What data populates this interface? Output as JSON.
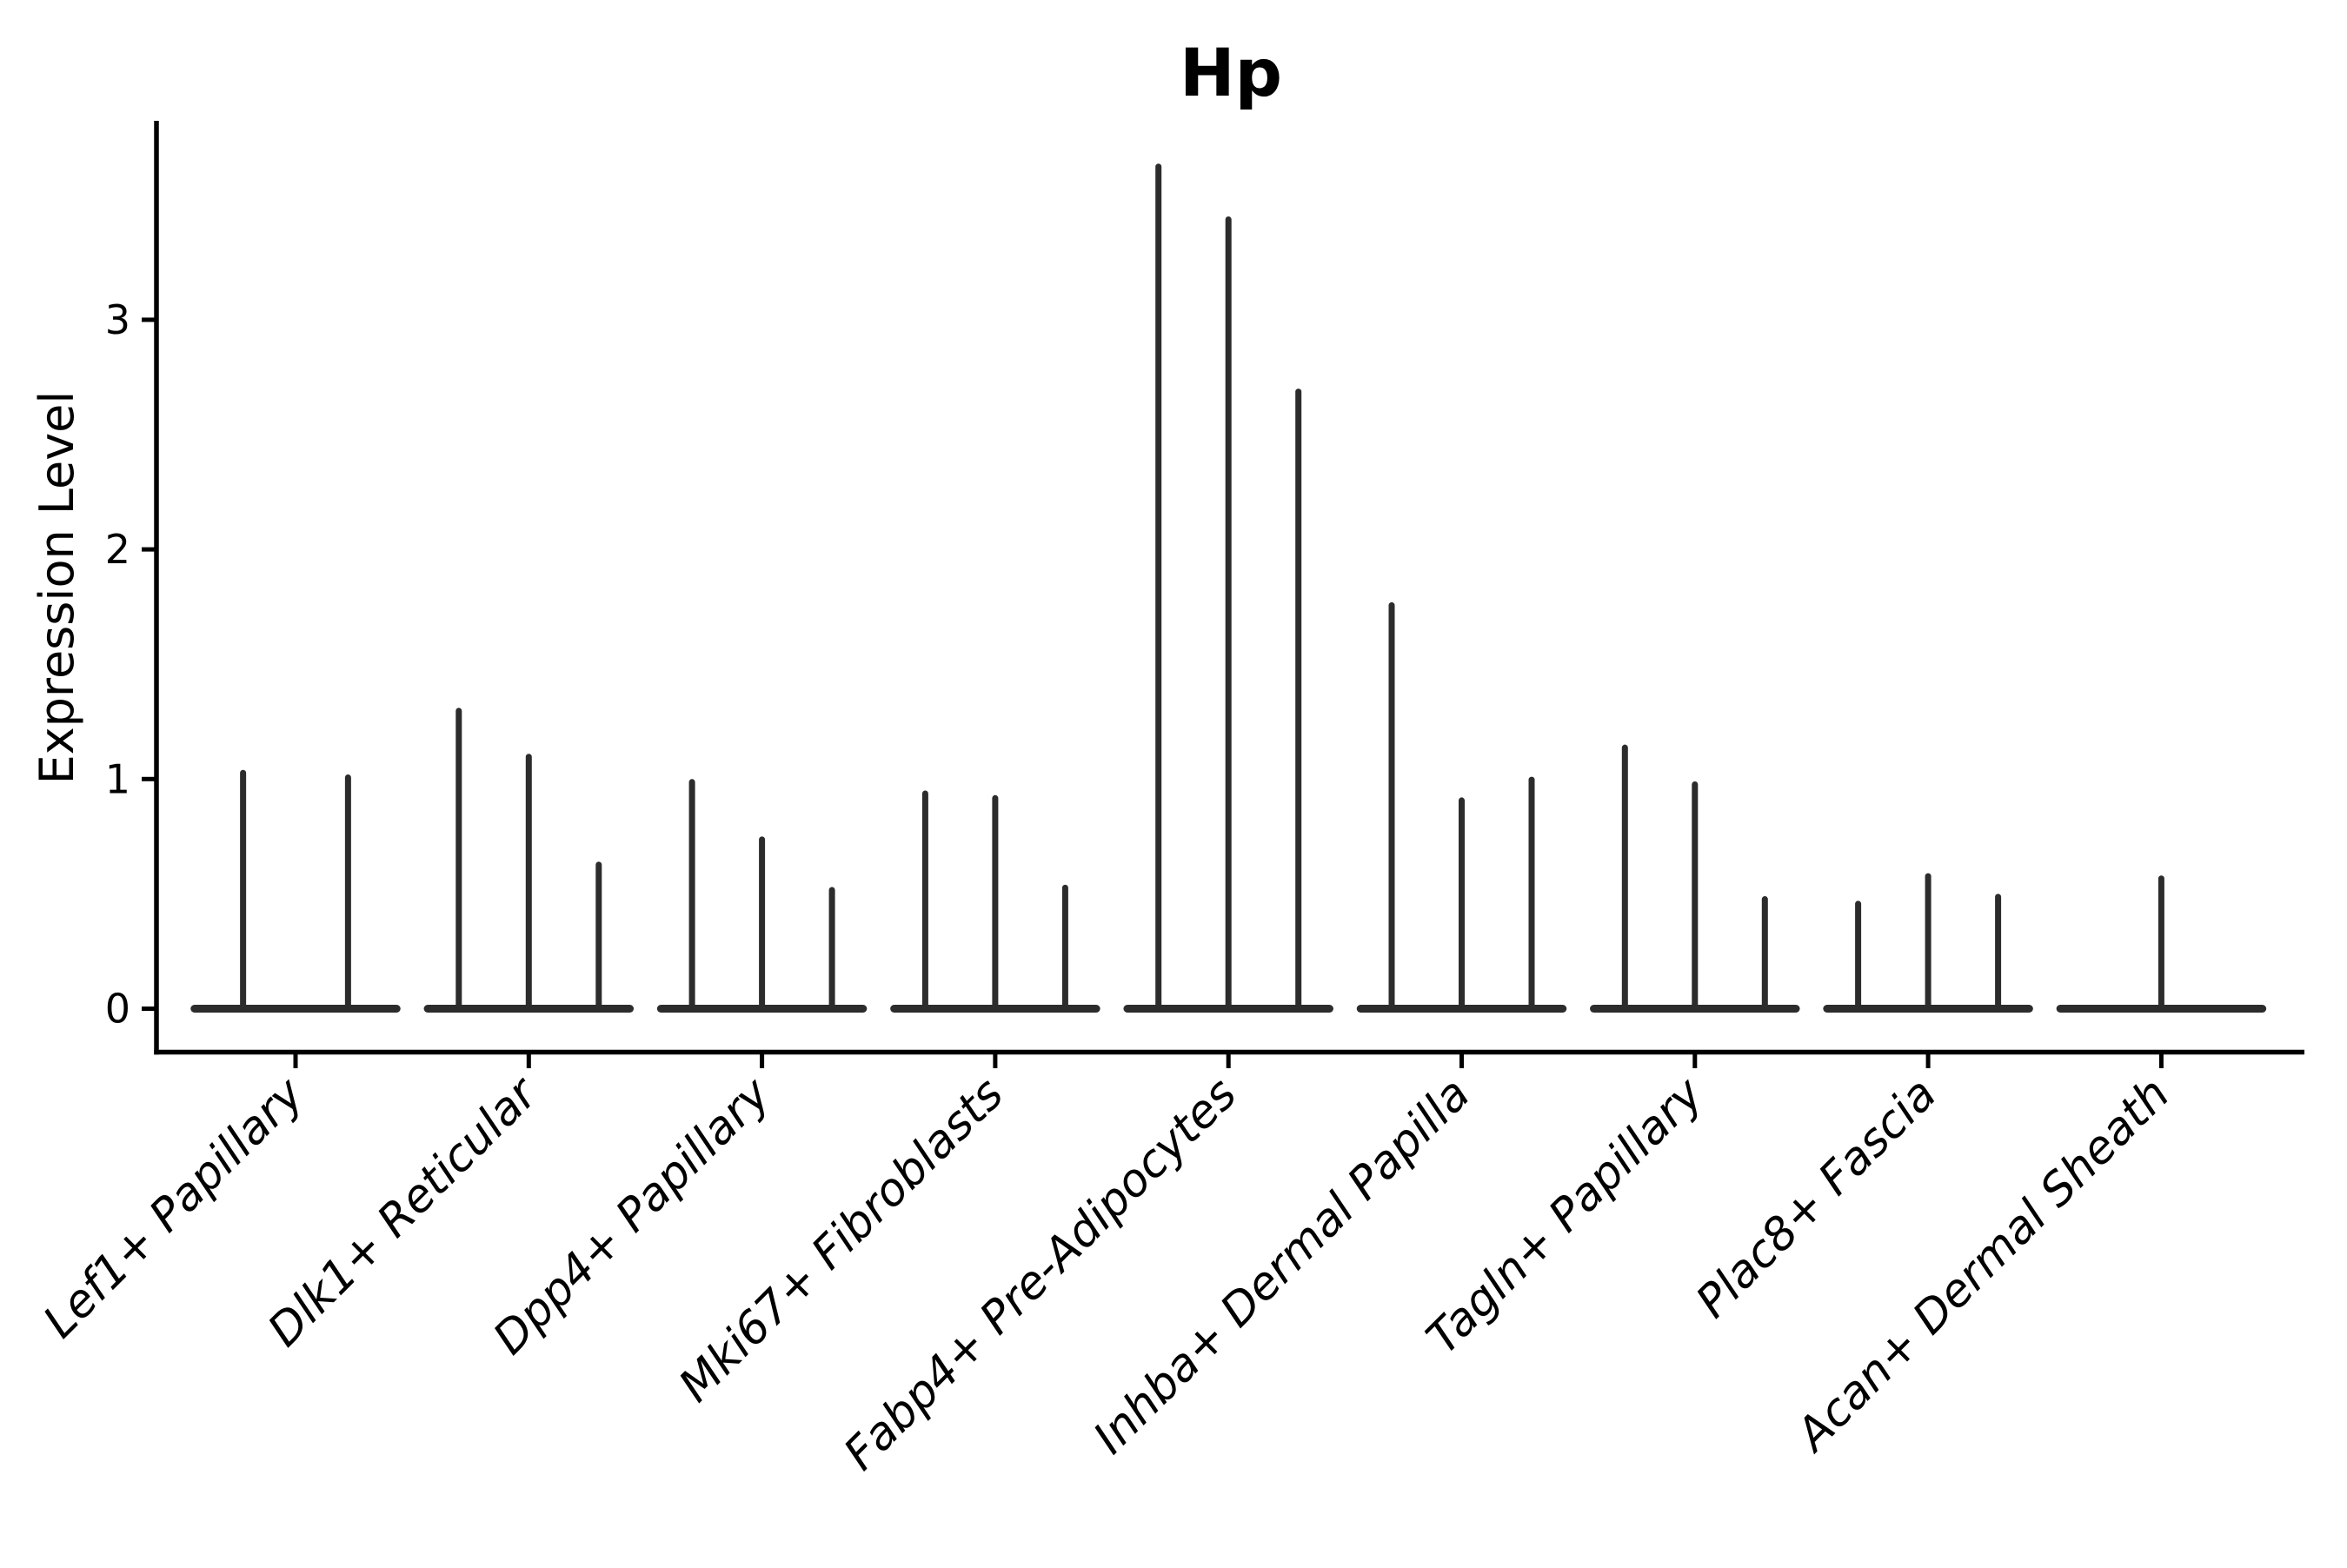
{
  "chart_data": {
    "type": "violin",
    "title": "Hp",
    "xlabel": "",
    "ylabel": "Expression Level",
    "yticks": [
      "0",
      "1",
      "2",
      "3"
    ],
    "ylim": [
      -0.18,
      3.87
    ],
    "legend": "none",
    "grid": false,
    "categories": [
      "Lef1+ Papillary",
      "Dlk1+ Reticular",
      "Dpp4+ Papillary",
      "Mki67+ Fibroblasts",
      "Fabp4+ Pre-Adipocytes",
      "Inhba+ Dermal Papilla",
      "Tagln+ Papillary",
      "Plac8+ Fascia",
      "Acan+ Dermal Sheath"
    ],
    "groups": [
      {
        "label": "Lef1+ Papillary",
        "violin_max_values": [
          1.04,
          1.02
        ]
      },
      {
        "label": "Dlk1+ Reticular",
        "violin_max_values": [
          1.31,
          1.11,
          0.64
        ]
      },
      {
        "label": "Dpp4+ Papillary",
        "violin_max_values": [
          1.0,
          0.75,
          0.53
        ]
      },
      {
        "label": "Mki67+ Fibroblasts",
        "violin_max_values": [
          0.95,
          0.93,
          0.54
        ]
      },
      {
        "label": "Fabp4+ Pre-Adipocytes",
        "violin_max_values": [
          3.68,
          3.45,
          2.7
        ]
      },
      {
        "label": "Inhba+ Dermal Papilla",
        "violin_max_values": [
          1.77,
          0.92,
          1.01
        ]
      },
      {
        "label": "Tagln+ Papillary",
        "violin_max_values": [
          1.15,
          0.99,
          0.49
        ]
      },
      {
        "label": "Plac8+ Fascia",
        "violin_max_values": [
          0.47,
          0.59,
          0.5
        ]
      },
      {
        "label": "Acan+ Dermal Sheath",
        "violin_max_values": [
          0.58
        ]
      }
    ],
    "violin_color": "#2c2c2c",
    "axis_color": "#000000",
    "background_color": "#ffffff"
  }
}
